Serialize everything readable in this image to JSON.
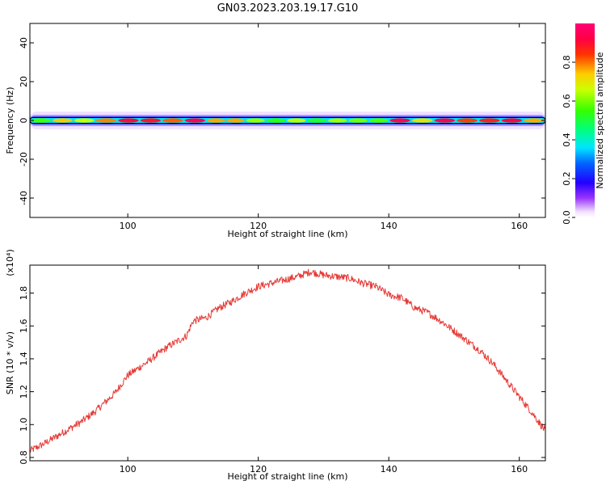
{
  "title": "GN03.2023.203.19.17.G10",
  "chart_data": [
    {
      "type": "heatmap",
      "xlabel": "Height of straight line (km)",
      "ylabel": "Frequency (Hz)",
      "xlim": [
        85,
        164
      ],
      "ylim": [
        -50,
        50
      ],
      "xticks": [
        100,
        120,
        140,
        160
      ],
      "yticks": [
        -40,
        -20,
        0,
        20,
        40
      ],
      "grid": false,
      "band": {
        "center_freq_hz": 0,
        "x_start": 85,
        "x_end": 164,
        "peak_amplitude_segments": [
          {
            "x": [
              85,
              95
            ],
            "amplitude": 0.75
          },
          {
            "x": [
              95,
              112
            ],
            "amplitude": 0.95
          },
          {
            "x": [
              112,
              118
            ],
            "amplitude": 0.85
          },
          {
            "x": [
              118,
              140
            ],
            "amplitude": 0.65
          },
          {
            "x": [
              140,
              164
            ],
            "amplitude": 0.95
          }
        ]
      },
      "colorbar": {
        "label": "Normalized spectral amplitude",
        "range": [
          0.0,
          1.0
        ],
        "ticks": [
          "0.0",
          "0.2",
          "0.4",
          "0.6",
          "0.8"
        ]
      }
    },
    {
      "type": "line",
      "xlabel": "Height of straight line (km)",
      "ylabel": "SNR (10 * v/v)",
      "multiplier_label": "(x10⁴)",
      "xlim": [
        85,
        164
      ],
      "ylim": [
        0.78,
        1.97
      ],
      "xticks": [
        100,
        120,
        140,
        160
      ],
      "yticks": [
        "0.8",
        "1.0",
        "1.2",
        "1.4",
        "1.6",
        "1.8"
      ],
      "grid": false,
      "color": "#e53935",
      "series": [
        {
          "x": [
            85,
            87,
            90,
            93,
            95,
            98,
            100,
            103,
            106,
            109,
            110,
            112,
            114,
            116,
            118,
            120,
            122,
            124,
            126,
            128,
            130,
            132,
            134,
            136,
            138,
            140,
            142,
            144,
            146,
            148,
            150,
            152,
            154,
            156,
            158,
            160,
            162,
            164
          ],
          "values": [
            0.84,
            0.88,
            0.95,
            1.02,
            1.08,
            1.19,
            1.3,
            1.38,
            1.47,
            1.54,
            1.63,
            1.65,
            1.71,
            1.75,
            1.8,
            1.84,
            1.86,
            1.88,
            1.9,
            1.93,
            1.91,
            1.9,
            1.89,
            1.86,
            1.84,
            1.79,
            1.77,
            1.71,
            1.68,
            1.63,
            1.57,
            1.51,
            1.45,
            1.37,
            1.27,
            1.17,
            1.07,
            0.96
          ]
        }
      ]
    }
  ]
}
